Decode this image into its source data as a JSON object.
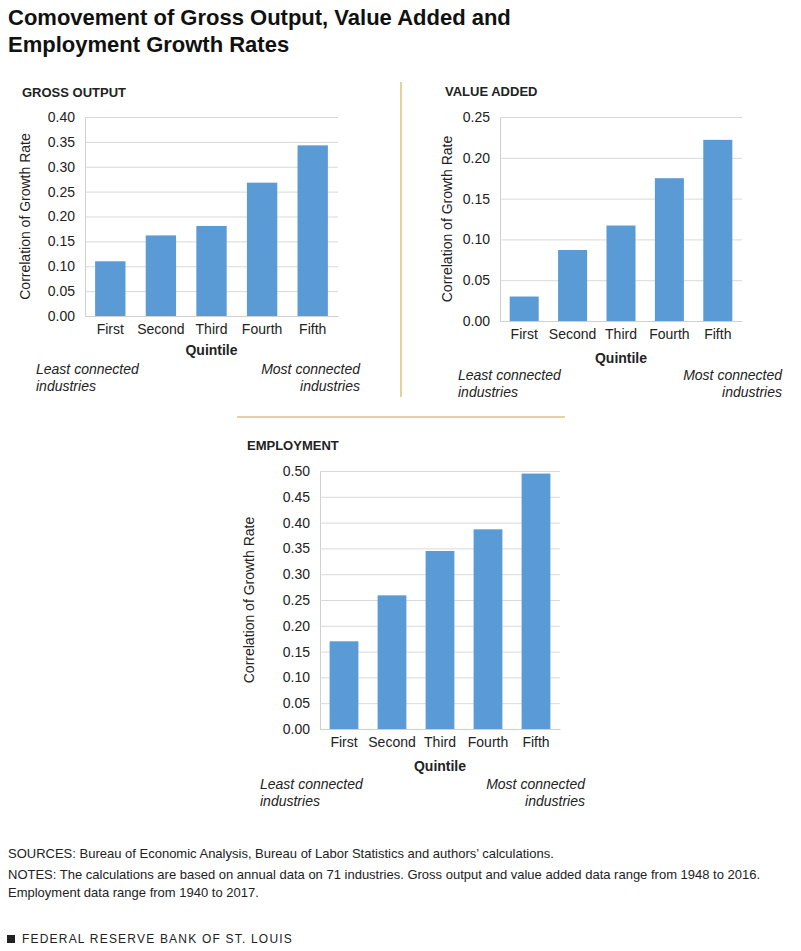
{
  "title": "Comovement of Gross Output, Value Added and Employment Growth Rates",
  "chart_data": [
    {
      "type": "bar",
      "title": "GROSS OUTPUT",
      "ylabel": "Correlation of Growth Rate",
      "xlabel": "Quintile",
      "annotations": [
        "Least connected industries",
        "Most connected industries"
      ],
      "categories": [
        "First",
        "Second",
        "Third",
        "Fourth",
        "Fifth"
      ],
      "values": [
        0.11,
        0.162,
        0.181,
        0.268,
        0.343
      ],
      "color": "#5b9bd5",
      "ylim": [
        0,
        0.4
      ],
      "yticks": [
        {
          "value": 0,
          "label": "0.00"
        },
        0.05,
        {
          "value": 0.1,
          "label": "0.10"
        },
        0.15,
        {
          "value": 0.2,
          "label": "0.20"
        },
        0.25,
        {
          "value": 0.3,
          "label": "0.30"
        },
        0.35,
        {
          "value": 0.4,
          "label": "0.40"
        }
      ],
      "grid": true
    },
    {
      "type": "bar",
      "title": "VALUE ADDED",
      "ylabel": "Correlation of Growth Rate",
      "xlabel": "Quintile",
      "annotations": [
        "Least connected industries",
        "Most connected industries"
      ],
      "categories": [
        "First",
        "Second",
        "Third",
        "Fourth",
        "Fifth"
      ],
      "values": [
        0.03,
        0.087,
        0.117,
        0.175,
        0.222
      ],
      "color": "#5b9bd5",
      "ylim": [
        0,
        0.25
      ],
      "yticks": [
        {
          "value": 0,
          "label": "0.00"
        },
        0.05,
        {
          "value": 0.1,
          "label": "0.10"
        },
        0.15,
        {
          "value": 0.2,
          "label": "0.20"
        },
        0.25
      ],
      "grid": true
    },
    {
      "type": "bar",
      "title": "EMPLOYMENT",
      "ylabel": "Correlation of Growth Rate",
      "xlabel": "Quintile",
      "annotations": [
        "Least connected industries",
        "Most connected industries"
      ],
      "categories": [
        "First",
        "Second",
        "Third",
        "Fourth",
        "Fifth"
      ],
      "values": [
        0.17,
        0.259,
        0.345,
        0.387,
        0.495
      ],
      "color": "#5b9bd5",
      "ylim": [
        0,
        0.5
      ],
      "yticks": [
        {
          "value": 0,
          "label": "0.00"
        },
        0.05,
        {
          "value": 0.1,
          "label": "0.10"
        },
        0.15,
        {
          "value": 0.2,
          "label": "0.20"
        },
        0.25,
        {
          "value": 0.3,
          "label": "0.30"
        },
        0.35,
        {
          "value": 0.4,
          "label": "0.40"
        },
        0.45,
        {
          "value": 0.5,
          "label": "0.50"
        }
      ],
      "grid": true
    }
  ],
  "sources": "SOURCES: Bureau of Economic Analysis, Bureau of Labor Statistics and authors’ calculations.",
  "notes": "NOTES: The calculations are based on annual data on 71 industries. Gross output and value added data range from 1948 to 2016. Employment data range from 1940 to 2017.",
  "footer": "FEDERAL RESERVE BANK OF ST. LOUIS"
}
